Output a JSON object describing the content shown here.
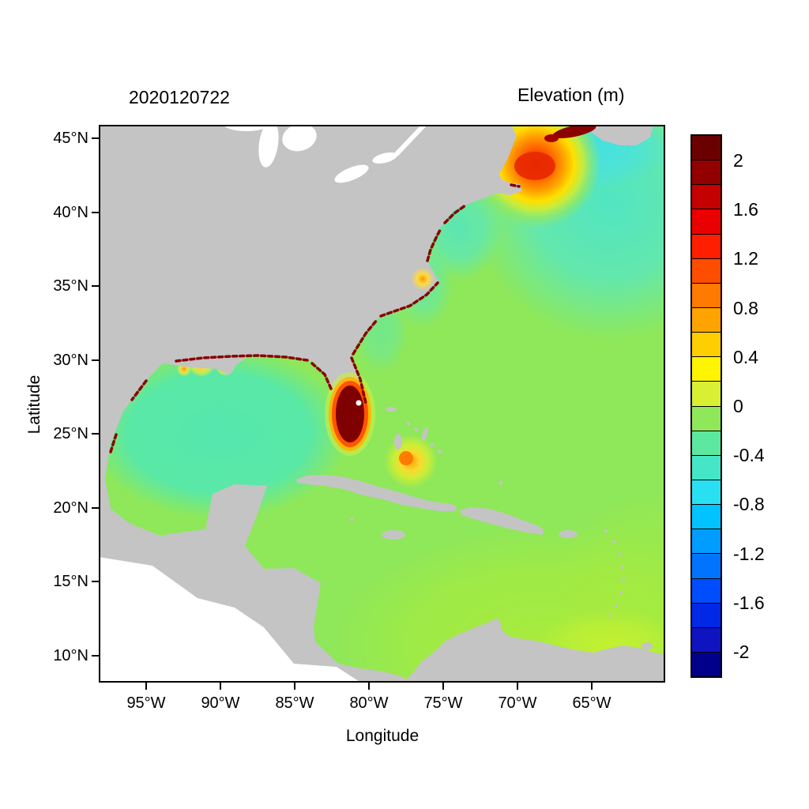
{
  "figure": {
    "run_label": "2020120722",
    "colorbar_title": "Elevation (m)"
  },
  "axes": {
    "x_label": "Longitude",
    "y_label": "Latitude",
    "x_ticks": [
      "95°W",
      "90°W",
      "85°W",
      "80°W",
      "75°W",
      "70°W",
      "65°W"
    ],
    "y_ticks": [
      "45°N",
      "40°N",
      "35°N",
      "30°N",
      "25°N",
      "20°N",
      "15°N",
      "10°N"
    ]
  },
  "colorbar": {
    "tick_labels": [
      "2",
      "1.6",
      "1.2",
      "0.8",
      "0.4",
      "0",
      "-0.4",
      "-0.8",
      "-1.2",
      "-1.6",
      "-2"
    ],
    "cell_colors": [
      "#6B0000",
      "#920000",
      "#C40000",
      "#EB0000",
      "#FF1E00",
      "#FF4D00",
      "#FF7A00",
      "#FFA300",
      "#FFCE00",
      "#FFF500",
      "#D8EF33",
      "#8EE85A",
      "#5DE89F",
      "#45E6C8",
      "#29E0F2",
      "#00C3FF",
      "#009CFF",
      "#0074FF",
      "#004CFF",
      "#0028E6",
      "#0F14C0",
      "#00008B"
    ]
  },
  "chart_data": {
    "type": "heatmap",
    "title": "2020120722",
    "variable": "Elevation (m)",
    "xlabel": "Longitude",
    "ylabel": "Latitude",
    "x_ticks_deg_west": [
      95,
      90,
      85,
      80,
      75,
      70,
      65
    ],
    "y_ticks_deg_north": [
      45,
      40,
      35,
      30,
      25,
      20,
      15,
      10
    ],
    "value_range_m": [
      -2,
      2
    ],
    "colorbar_tick_step_m": 0.4,
    "legend_position": "right",
    "land_color": "#C4C4C4",
    "no_data_color": "#FFFFFF",
    "observed_values": [
      {
        "area": "open western North Atlantic",
        "approx_m": 0.0
      },
      {
        "area": "Gulf of Mexico",
        "approx_m": -0.3
      },
      {
        "area": "US mid-Atlantic / northeast coastal shelf",
        "approx_m": -0.5
      },
      {
        "area": "Gulf of Maine / New England coast",
        "approx_m": 1.3
      },
      {
        "area": "Bay of Fundy",
        "approx_m": 2.0
      },
      {
        "area": "southern Florida coast",
        "approx_m": 2.0
      },
      {
        "area": "northern Gulf coast estuaries",
        "approx_m": 0.8
      },
      {
        "area": "Pamlico Sound, North Carolina",
        "approx_m": 0.6
      },
      {
        "area": "banks south of central Cuba",
        "approx_m": 0.6
      },
      {
        "area": "southern Caribbean Sea",
        "approx_m": 0.1
      },
      {
        "area": "Venezuelan coastal patch",
        "approx_m": 0.3
      }
    ]
  }
}
